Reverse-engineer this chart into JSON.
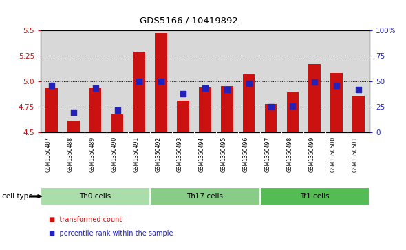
{
  "title": "GDS5166 / 10419892",
  "samples": [
    "GSM1350487",
    "GSM1350488",
    "GSM1350489",
    "GSM1350490",
    "GSM1350491",
    "GSM1350492",
    "GSM1350493",
    "GSM1350494",
    "GSM1350495",
    "GSM1350496",
    "GSM1350497",
    "GSM1350498",
    "GSM1350499",
    "GSM1350500",
    "GSM1350501"
  ],
  "bar_values": [
    4.93,
    4.62,
    4.93,
    4.68,
    5.29,
    5.47,
    4.81,
    4.94,
    4.95,
    5.07,
    4.78,
    4.89,
    5.17,
    5.08,
    4.86
  ],
  "percentile_values": [
    46,
    20,
    43,
    22,
    50,
    50,
    38,
    43,
    42,
    48,
    25,
    26,
    49,
    46,
    42
  ],
  "bar_bottom": 4.5,
  "ylim": [
    4.5,
    5.5
  ],
  "yticks": [
    4.5,
    4.75,
    5.0,
    5.25,
    5.5
  ],
  "y_right_ticks": [
    0,
    25,
    50,
    75,
    100
  ],
  "y_right_labels": [
    "0",
    "25",
    "50",
    "75",
    "100%"
  ],
  "bar_color": "#cc1111",
  "dot_color": "#2222bb",
  "bg_color": "#d8d8d8",
  "cell_type_colors": [
    "#aaddaa",
    "#88cc88",
    "#55bb55"
  ],
  "cell_types": [
    {
      "label": "Th0 cells",
      "start": 0,
      "end": 5
    },
    {
      "label": "Th17 cells",
      "start": 5,
      "end": 10
    },
    {
      "label": "Tr1 cells",
      "start": 10,
      "end": 15
    }
  ],
  "legend_items": [
    {
      "label": "transformed count",
      "color": "#cc1111"
    },
    {
      "label": "percentile rank within the sample",
      "color": "#2222bb"
    }
  ],
  "cell_type_label": "cell type",
  "bar_width": 0.55,
  "dot_size": 40,
  "left_label_color": "#cc1111",
  "right_label_color": "#2222bb"
}
